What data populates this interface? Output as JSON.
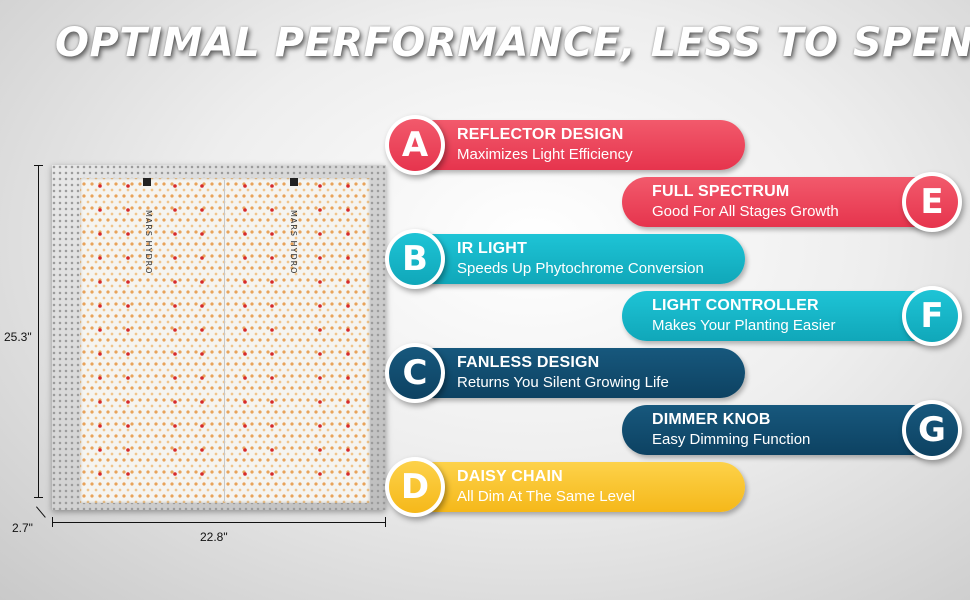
{
  "headline": "OPTIMAL PERFORMANCE, LESS TO SPEND",
  "product": {
    "brand_label": "MARS HYDRO",
    "dimensions": {
      "height": "25.3\"",
      "width": "22.8\"",
      "depth": "2.7\""
    }
  },
  "colors": {
    "red": "#e6344d",
    "teal": "#10a7b9",
    "navy": "#0d4262",
    "yellow": "#f5b81a"
  },
  "features": [
    {
      "letter": "A",
      "title": "REFLECTOR DESIGN",
      "subtitle": "Maximizes Light Efficiency",
      "color": "red",
      "side": "left"
    },
    {
      "letter": "E",
      "title": "FULL SPECTRUM",
      "subtitle": "Good For All Stages Growth",
      "color": "red",
      "side": "right"
    },
    {
      "letter": "B",
      "title": "IR LIGHT",
      "subtitle": "Speeds Up Phytochrome Conversion",
      "color": "teal",
      "side": "left"
    },
    {
      "letter": "F",
      "title": "LIGHT CONTROLLER",
      "subtitle": "Makes Your Planting Easier",
      "color": "teal",
      "side": "right"
    },
    {
      "letter": "C",
      "title": "FANLESS DESIGN",
      "subtitle": "Returns You Silent Growing Life",
      "color": "navy",
      "side": "left"
    },
    {
      "letter": "G",
      "title": "DIMMER KNOB",
      "subtitle": "Easy Dimming Function",
      "color": "navy",
      "side": "right"
    },
    {
      "letter": "D",
      "title": "DAISY CHAIN",
      "subtitle": "All Dim At The Same Level",
      "color": "yellow",
      "side": "left"
    }
  ]
}
